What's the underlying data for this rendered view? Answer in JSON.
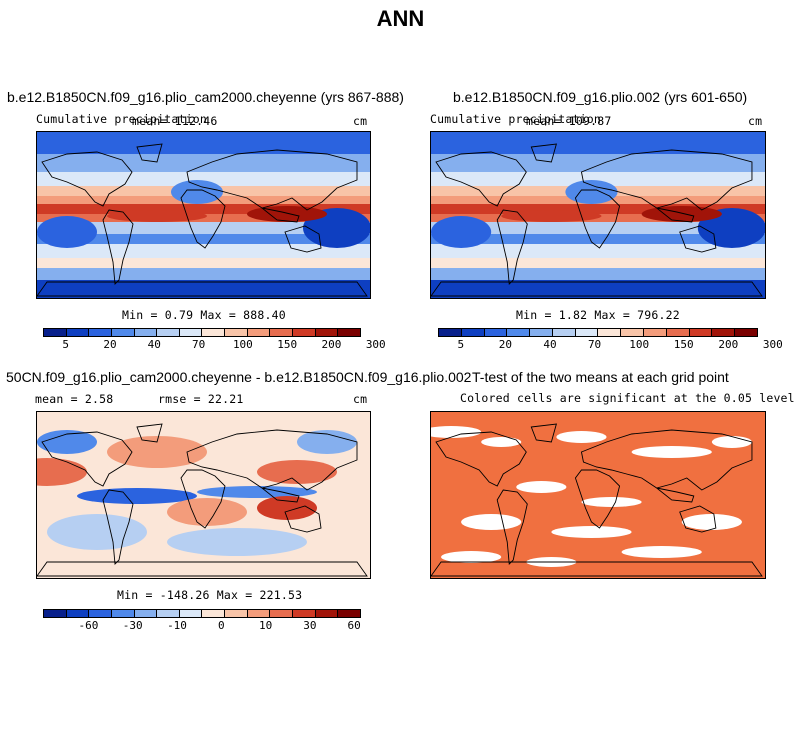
{
  "title": "ANN",
  "colors": {
    "precip_scale": [
      "#08208c",
      "#0e3fc1",
      "#2b63df",
      "#5089ea",
      "#85afee",
      "#b6cff2",
      "#dbe8f8",
      "#fbe6d8",
      "#f8c4a8",
      "#f39c7b",
      "#e76d4f",
      "#cf3a25",
      "#a11409",
      "#7a0000"
    ],
    "diff_scale": [
      "#08208c",
      "#0e3fc1",
      "#2b63df",
      "#5089ea",
      "#85afee",
      "#b6cff2",
      "#dbe8f8",
      "#fbe6d8",
      "#f8c4a8",
      "#f39c7b",
      "#e76d4f",
      "#cf3a25",
      "#a11409",
      "#7a0000"
    ],
    "significant": "#f07040"
  },
  "panels": {
    "top_left": {
      "title": "b.e12.B1850CN.f09_g16.plio_cam2000.cheyenne (yrs 867-888)",
      "variable": "Cumulative precipitation",
      "mean": "mean= 112.46",
      "units": "cm",
      "minmax": "Min =   0.79 Max = 888.40"
    },
    "top_right": {
      "title": "b.e12.B1850CN.f09_g16.plio.002 (yrs 601-650)",
      "variable": "Cumulative precipitation",
      "mean": "mean= 109.87",
      "units": "cm",
      "minmax": "Min =   1.82 Max = 796.22"
    },
    "bottom_left": {
      "title": "50CN.f09_g16.plio_cam2000.cheyenne - b.e12.B1850CN.f09_g16.plio.002",
      "mean": "mean =   2.58",
      "rmse": "rmse =  22.21",
      "units": "cm",
      "minmax": "Min = -148.26 Max = 221.53"
    },
    "bottom_right": {
      "title": "T-test of the two means at each grid point",
      "subtitle": "Colored cells are significant at the 0.05 level"
    }
  },
  "colorbars": {
    "precip_labels": [
      "5",
      "20",
      "40",
      "70",
      "100",
      "150",
      "200",
      "300"
    ],
    "diff_labels": [
      "-60",
      "-30",
      "-10",
      "0",
      "10",
      "30",
      "60"
    ]
  }
}
